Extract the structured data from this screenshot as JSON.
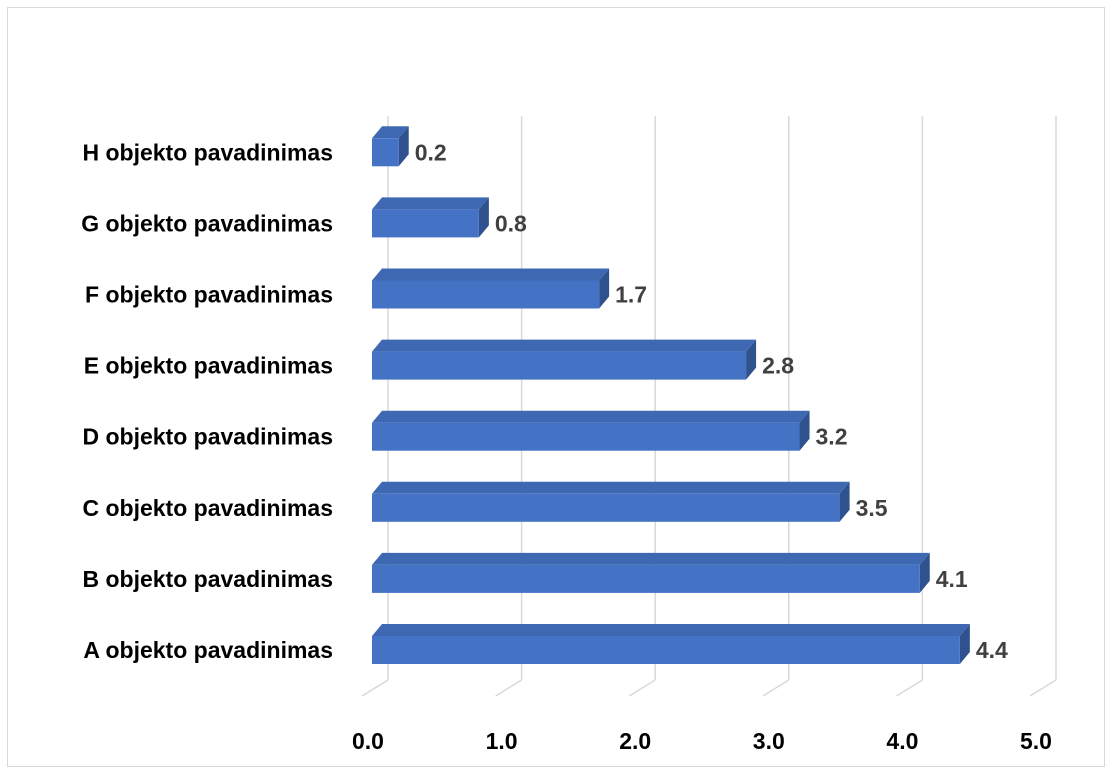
{
  "chart_data": {
    "type": "bar",
    "orientation": "horizontal",
    "style": "3d-clustered-bar",
    "title": "",
    "xlabel": "",
    "ylabel": "",
    "categories": [
      "A objekto pavadinimas",
      "B objekto pavadinimas",
      "C objekto pavadinimas",
      "D objekto pavadinimas",
      "E objekto pavadinimas",
      "F objekto pavadinimas",
      "G objekto pavadinimas",
      "H objekto pavadinimas"
    ],
    "values": [
      4.4,
      4.1,
      3.5,
      3.2,
      2.8,
      1.7,
      0.8,
      0.2
    ],
    "value_labels": [
      "4.4",
      "4.1",
      "3.5",
      "3.2",
      "2.8",
      "1.7",
      "0.8",
      "0.2"
    ],
    "xlim": [
      0,
      5
    ],
    "x_ticks": [
      "0.0",
      "1.0",
      "2.0",
      "3.0",
      "4.0",
      "5.0"
    ],
    "grid": true,
    "legend": "none",
    "colors": {
      "bar_front": "#4472c4",
      "bar_top": "#3f68b3",
      "bar_side": "#2f528f",
      "grid": "#d9d9d9"
    }
  }
}
